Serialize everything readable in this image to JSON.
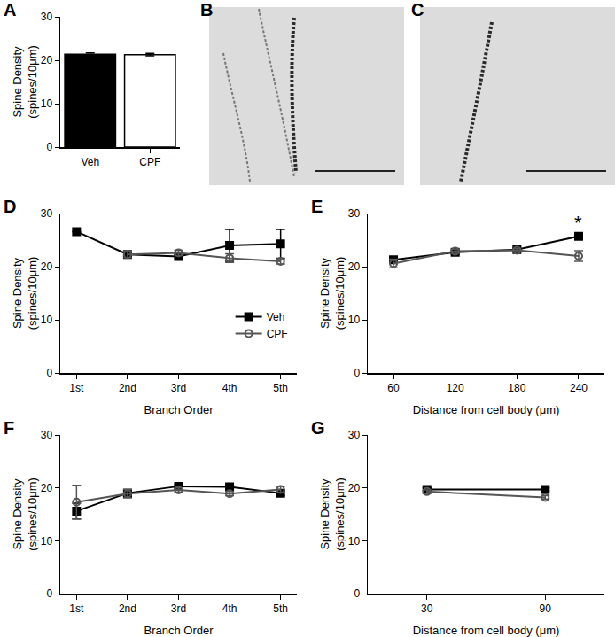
{
  "chart_data": [
    {
      "title": "A",
      "type": "bar",
      "categories": [
        "Veh",
        "CPF"
      ],
      "values": [
        21.4,
        21.3
      ],
      "errors": [
        0.3,
        0.3
      ],
      "colors": [
        "#000000",
        "#ffffff"
      ],
      "y_label": "Spine Density\n(spines/10μm)",
      "ylim": [
        0,
        30
      ],
      "yticks": [
        0,
        10,
        20,
        30
      ],
      "grid": false
    },
    {
      "title": "B",
      "type": "image"
    },
    {
      "title": "C",
      "type": "image"
    },
    {
      "title": "D",
      "type": "line",
      "categories": [
        "1st",
        "2nd",
        "3rd",
        "4th",
        "5th"
      ],
      "x_label": "Branch Order",
      "y_label": "Spine Density\n(spines/10μm)",
      "ylim": [
        0,
        30
      ],
      "yticks": [
        0,
        10,
        20,
        30
      ],
      "grid": false,
      "legend": "right",
      "series": [
        {
          "name": "Veh",
          "color": "#000000",
          "marker": "square",
          "values": [
            26.6,
            22.3,
            21.9,
            24.0,
            24.3
          ],
          "errors": [
            0,
            0.4,
            0.3,
            3.0,
            2.7
          ]
        },
        {
          "name": "CPF",
          "color": "#555555",
          "marker": "circle-open",
          "values": [
            null,
            22.3,
            22.6,
            21.6,
            21.0
          ],
          "errors": [
            null,
            0.6,
            0.5,
            0.8,
            0.5
          ]
        }
      ]
    },
    {
      "title": "E",
      "type": "line",
      "x": [
        60,
        120,
        180,
        240
      ],
      "x_label": "Distance from cell body (μm)",
      "y_label": "Spine Density\n(spines/10μm)",
      "xlim": [
        35,
        265
      ],
      "xticks": [
        60,
        120,
        180,
        240
      ],
      "ylim": [
        0,
        30
      ],
      "yticks": [
        0,
        10,
        20,
        30
      ],
      "grid": false,
      "annotations": [
        {
          "text": "*",
          "x": 240
        }
      ],
      "series": [
        {
          "name": "Veh",
          "color": "#000000",
          "marker": "square",
          "values": [
            21.3,
            22.7,
            23.2,
            25.7
          ],
          "errors": [
            0.5,
            0.4,
            0.3,
            0.4
          ]
        },
        {
          "name": "CPF",
          "color": "#555555",
          "marker": "circle-open",
          "values": [
            20.6,
            22.9,
            23.1,
            22.0
          ],
          "errors": [
            0.8,
            0.4,
            0.3,
            1.0
          ]
        }
      ]
    },
    {
      "title": "F",
      "type": "line",
      "categories": [
        "1st",
        "2nd",
        "3rd",
        "4th",
        "5th"
      ],
      "x_label": "Branch Order",
      "y_label": "Spine Density\n(spines/10μm)",
      "ylim": [
        0,
        30
      ],
      "yticks": [
        0,
        10,
        20,
        30
      ],
      "grid": false,
      "series": [
        {
          "name": "Veh",
          "color": "#000000",
          "marker": "square",
          "values": [
            15.6,
            19.0,
            20.3,
            20.2,
            19.0
          ],
          "errors": [
            1.5,
            0.7,
            0.3,
            0.3,
            0.5
          ]
        },
        {
          "name": "CPF",
          "color": "#555555",
          "marker": "circle-open",
          "values": [
            17.3,
            18.9,
            19.6,
            18.9,
            19.7
          ],
          "errors": [
            3.2,
            0.8,
            0.4,
            0.4,
            0.6
          ]
        }
      ]
    },
    {
      "title": "G",
      "type": "line",
      "x": [
        30,
        90
      ],
      "x_label": "Distance from cell body (μm)",
      "y_label": "Spine Density\n(spines/10μm)",
      "xlim": [
        0,
        120
      ],
      "xticks": [
        30,
        90
      ],
      "ylim": [
        0,
        30
      ],
      "yticks": [
        0,
        10,
        20,
        30
      ],
      "grid": false,
      "series": [
        {
          "name": "Veh",
          "color": "#000000",
          "marker": "square",
          "values": [
            19.7,
            19.7
          ],
          "errors": [
            0.3,
            0.3
          ]
        },
        {
          "name": "CPF",
          "color": "#555555",
          "marker": "circle-open",
          "values": [
            19.3,
            18.2
          ],
          "errors": [
            0.3,
            0.3
          ]
        }
      ]
    }
  ]
}
